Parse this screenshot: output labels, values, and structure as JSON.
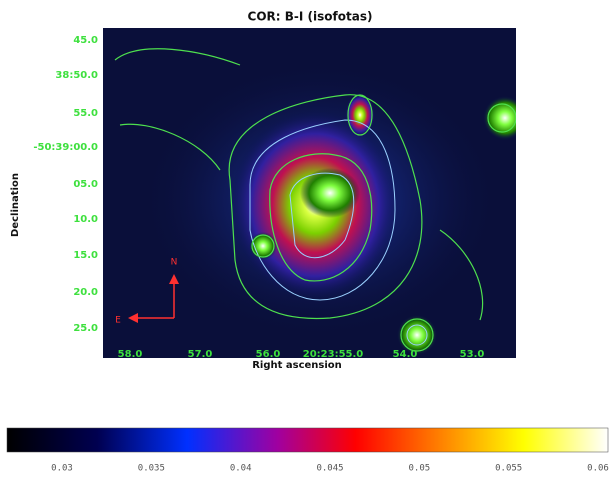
{
  "title": "COR: B-I (isofotas)",
  "y_axis": {
    "label": "Declination",
    "ticks": [
      "45.0",
      "38:50.0",
      "55.0",
      "-50:39:00.0",
      "05.0",
      "10.0",
      "15.0",
      "20.0",
      "25.0"
    ]
  },
  "x_axis": {
    "label": "Right ascension",
    "ticks": [
      "58.0",
      "57.0",
      "56.0",
      "20:23:55.0",
      "54.0",
      "53.0"
    ]
  },
  "compass": {
    "north": "N",
    "east": "E"
  },
  "colorbar": {
    "ticks": [
      "0.03",
      "0.035",
      "0.04",
      "0.045",
      "0.05",
      "0.055",
      "0.06"
    ]
  }
}
